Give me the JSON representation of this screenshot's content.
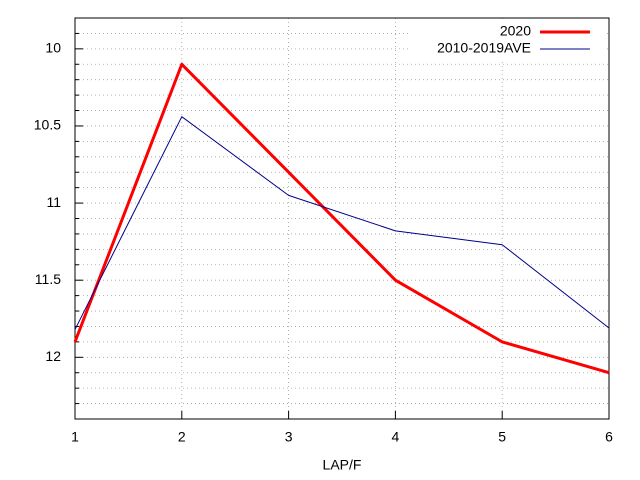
{
  "chart_data": {
    "type": "line",
    "x_label": "LAP/F",
    "x": [
      1,
      2,
      3,
      4,
      5,
      6
    ],
    "series": [
      {
        "name": "2020",
        "color": "#ff0000",
        "values": [
          11.9,
          10.1,
          10.8,
          11.5,
          11.9,
          12.1
        ]
      },
      {
        "name": "2010-2019AVE",
        "color": "#00008b",
        "values": [
          11.82,
          10.44,
          10.95,
          11.18,
          11.27,
          11.81
        ]
      }
    ],
    "xlim": [
      1,
      6
    ],
    "xticks": [
      1,
      2,
      3,
      4,
      5,
      6
    ],
    "ylim": [
      12.4,
      9.8
    ],
    "yticks": [
      10,
      10.5,
      11,
      11.5,
      12
    ],
    "yminorticks": [
      9.9,
      10.1,
      10.2,
      10.3,
      10.4,
      10.6,
      10.7,
      10.8,
      10.9,
      11.1,
      11.2,
      11.3,
      11.4,
      11.6,
      11.7,
      11.8,
      11.9,
      12.1,
      12.2,
      12.3
    ],
    "grid": true,
    "legend": "top-right"
  }
}
